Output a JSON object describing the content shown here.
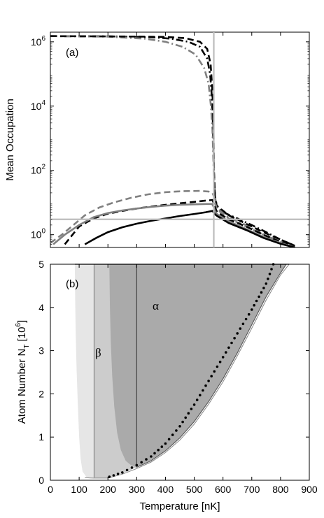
{
  "chart_data": [
    {
      "type": "line",
      "panel_label": "(a)",
      "ylabel": "Mean Occupation",
      "yscale": "log",
      "x_axis": {
        "range": [
          0,
          900
        ]
      },
      "y_axis": {
        "range": [
          0.4,
          2000000
        ]
      },
      "y_ticks": [
        {
          "value": 1,
          "base": "10",
          "exp": "0"
        },
        {
          "value": 100,
          "base": "10",
          "exp": "2"
        },
        {
          "value": 10000,
          "base": "10",
          "exp": "4"
        },
        {
          "value": 1000000,
          "base": "10",
          "exp": "6"
        }
      ],
      "reference_lines": [
        {
          "orientation": "vertical",
          "x": 568,
          "color": "#bcbcbc"
        },
        {
          "orientation": "horizontal",
          "y": 3,
          "color": "#bcbcbc"
        }
      ],
      "series": [
        {
          "style": "dashdot",
          "color": "#000000",
          "points": [
            [
              0,
              1500000
            ],
            [
              200,
              1480000
            ],
            [
              350,
              1400000
            ],
            [
              420,
              1250000
            ],
            [
              480,
              1000000
            ],
            [
              520,
              700000
            ],
            [
              545,
              300000
            ],
            [
              555,
              100000
            ],
            [
              560,
              30000
            ],
            [
              564,
              5000
            ],
            [
              567,
              500
            ],
            [
              569,
              60
            ],
            [
              572,
              15
            ],
            [
              578,
              8
            ],
            [
              600,
              5
            ],
            [
              650,
              3.2
            ],
            [
              700,
              2
            ],
            [
              750,
              1.2
            ],
            [
              800,
              0.7
            ],
            [
              850,
              0.45
            ]
          ]
        },
        {
          "style": "dashdot",
          "color": "#808080",
          "points": [
            [
              0,
              1500000
            ],
            [
              200,
              1450000
            ],
            [
              330,
              1250000
            ],
            [
              400,
              1000000
            ],
            [
              460,
              700000
            ],
            [
              505,
              400000
            ],
            [
              535,
              150000
            ],
            [
              550,
              50000
            ],
            [
              558,
              10000
            ],
            [
              563,
              2000
            ],
            [
              566,
              300
            ],
            [
              569,
              40
            ],
            [
              574,
              12
            ],
            [
              585,
              6
            ],
            [
              620,
              3.5
            ],
            [
              680,
              2
            ],
            [
              740,
              1
            ],
            [
              800,
              0.6
            ],
            [
              850,
              0.4
            ]
          ]
        },
        {
          "style": "dashed",
          "color": "#000000",
          "points": [
            [
              0,
              1500000
            ],
            [
              150,
              1480000
            ],
            [
              300,
              1460000
            ],
            [
              400,
              1420000
            ],
            [
              470,
              1300000
            ],
            [
              520,
              1000000
            ],
            [
              545,
              600000
            ],
            [
              557,
              200000
            ],
            [
              563,
              30000
            ],
            [
              567,
              2000
            ],
            [
              569,
              80
            ],
            [
              572,
              15
            ],
            [
              578,
              8
            ],
            [
              620,
              4
            ],
            [
              680,
              2.2
            ],
            [
              740,
              1.2
            ],
            [
              800,
              0.7
            ],
            [
              850,
              0.45
            ]
          ]
        },
        {
          "style": "dashed",
          "color": "#808080",
          "points": [
            [
              0,
              0.55
            ],
            [
              40,
              1
            ],
            [
              80,
              2
            ],
            [
              120,
              4
            ],
            [
              170,
              7
            ],
            [
              220,
              10
            ],
            [
              280,
              14
            ],
            [
              340,
              18
            ],
            [
              400,
              21
            ],
            [
              460,
              22.5
            ],
            [
              520,
              23
            ],
            [
              550,
              22
            ],
            [
              563,
              20
            ],
            [
              568,
              16
            ],
            [
              572,
              10
            ],
            [
              580,
              6
            ],
            [
              620,
              3.2
            ],
            [
              680,
              1.8
            ],
            [
              740,
              1
            ],
            [
              800,
              0.6
            ],
            [
              850,
              0.4
            ]
          ]
        },
        {
          "style": "dashed",
          "color": "#000000",
          "points": [
            [
              50,
              0.5
            ],
            [
              100,
              1.8
            ],
            [
              150,
              3.2
            ],
            [
              200,
              4.5
            ],
            [
              250,
              5.5
            ],
            [
              300,
              6.5
            ],
            [
              350,
              7.5
            ],
            [
              400,
              8.5
            ],
            [
              450,
              9.5
            ],
            [
              500,
              10.5
            ],
            [
              540,
              11.5
            ],
            [
              563,
              12
            ],
            [
              567,
              10
            ],
            [
              572,
              7
            ],
            [
              580,
              5
            ],
            [
              620,
              3
            ],
            [
              680,
              1.8
            ],
            [
              740,
              1
            ],
            [
              800,
              0.6
            ],
            [
              850,
              0.4
            ]
          ]
        },
        {
          "style": "solid",
          "color": "#808080",
          "points": [
            [
              10,
              0.5
            ],
            [
              50,
              1
            ],
            [
              100,
              2
            ],
            [
              150,
              3.5
            ],
            [
              200,
              4.7
            ],
            [
              250,
              5.7
            ],
            [
              300,
              6.5
            ],
            [
              350,
              7.3
            ],
            [
              400,
              8
            ],
            [
              450,
              8.5
            ],
            [
              500,
              8.8
            ],
            [
              540,
              9
            ],
            [
              562,
              9
            ],
            [
              567,
              7.5
            ],
            [
              572,
              5.5
            ],
            [
              580,
              4.3
            ],
            [
              620,
              2.6
            ],
            [
              680,
              1.5
            ],
            [
              740,
              0.85
            ],
            [
              800,
              0.55
            ],
            [
              850,
              0.4
            ]
          ]
        },
        {
          "style": "solid",
          "color": "#000000",
          "points": [
            [
              120,
              0.5
            ],
            [
              160,
              0.8
            ],
            [
              200,
              1.2
            ],
            [
              250,
              1.7
            ],
            [
              300,
              2.2
            ],
            [
              350,
              2.7
            ],
            [
              400,
              3.2
            ],
            [
              450,
              3.8
            ],
            [
              500,
              4.4
            ],
            [
              540,
              5
            ],
            [
              563,
              5.5
            ],
            [
              567,
              5
            ],
            [
              572,
              4.3
            ],
            [
              580,
              3.8
            ],
            [
              620,
              2.3
            ],
            [
              680,
              1.4
            ],
            [
              740,
              0.8
            ],
            [
              800,
              0.52
            ],
            [
              850,
              0.4
            ]
          ]
        }
      ]
    },
    {
      "type": "area",
      "panel_label": "(b)",
      "xlabel": "Temperature [nK]",
      "ylabel": "Atom Number N",
      "ylabel_sub": "T",
      "ylabel_unit": "[10",
      "ylabel_unit_exp": "6",
      "ylabel_unit_close": "]",
      "x_axis": {
        "range": [
          0,
          900
        ],
        "ticks": [
          "0",
          "100",
          "200",
          "300",
          "400",
          "500",
          "600",
          "700",
          "800",
          "900"
        ]
      },
      "y_axis": {
        "range": [
          0,
          5
        ],
        "ticks": [
          "0",
          "1",
          "2",
          "3",
          "4",
          "5"
        ]
      },
      "annotations": [
        {
          "text": "α",
          "x": 355,
          "y": 4.15
        },
        {
          "text": "β",
          "x": 160,
          "y": 2.65
        }
      ],
      "regions": [
        {
          "name": "outer",
          "color": "#e6e6e6",
          "boundary": [
            [
              85,
              5
            ],
            [
              86,
              4.2
            ],
            [
              88,
              3.4
            ],
            [
              91,
              2.6
            ],
            [
              95,
              1.8
            ],
            [
              100,
              1
            ],
            [
              105,
              0.5
            ],
            [
              112,
              0.2
            ],
            [
              125,
              0.08
            ],
            [
              150,
              0.06
            ],
            [
              180,
              0.05
            ],
            [
              200,
              0.06
            ],
            [
              250,
              0.16
            ],
            [
              300,
              0.3
            ],
            [
              350,
              0.45
            ],
            [
              400,
              0.68
            ],
            [
              450,
              0.98
            ],
            [
              500,
              1.36
            ],
            [
              550,
              1.82
            ],
            [
              600,
              2.35
            ],
            [
              650,
              2.95
            ],
            [
              700,
              3.6
            ],
            [
              750,
              4.25
            ],
            [
              800,
              4.8
            ],
            [
              820,
              5
            ]
          ]
        },
        {
          "name": "beta",
          "color": "#cccccc",
          "boundary": [
            [
              152,
              5
            ],
            [
              152,
              0.06
            ],
            [
              180,
              0.05
            ],
            [
              200,
              0.06
            ],
            [
              250,
              0.16
            ],
            [
              300,
              0.3
            ],
            [
              350,
              0.45
            ],
            [
              400,
              0.68
            ],
            [
              450,
              0.98
            ],
            [
              500,
              1.36
            ],
            [
              550,
              1.82
            ],
            [
              600,
              2.35
            ],
            [
              650,
              2.95
            ],
            [
              700,
              3.6
            ],
            [
              750,
              4.25
            ],
            [
              800,
              4.8
            ],
            [
              820,
              5
            ]
          ],
          "inner_curve": [
            [
              205,
              5
            ],
            [
              207,
              4
            ],
            [
              210,
              3.2
            ],
            [
              215,
              2.4
            ],
            [
              222,
              1.7
            ],
            [
              232,
              1.1
            ],
            [
              245,
              0.7
            ],
            [
              262,
              0.45
            ],
            [
              280,
              0.35
            ],
            [
              300,
              0.3
            ]
          ]
        },
        {
          "name": "alpha",
          "color": "#aaaaaa",
          "boundary": [
            [
              300,
              5
            ],
            [
              300,
              0.3
            ],
            [
              350,
              0.45
            ],
            [
              400,
              0.68
            ],
            [
              450,
              0.98
            ],
            [
              500,
              1.36
            ],
            [
              550,
              1.82
            ],
            [
              600,
              2.35
            ],
            [
              650,
              2.95
            ],
            [
              700,
              3.6
            ],
            [
              750,
              4.25
            ],
            [
              800,
              4.8
            ],
            [
              820,
              5
            ]
          ]
        }
      ],
      "lower_curve": [
        [
          120,
          0.06
        ],
        [
          150,
          0.05
        ],
        [
          200,
          0.05
        ],
        [
          250,
          0.14
        ],
        [
          300,
          0.27
        ],
        [
          350,
          0.42
        ],
        [
          400,
          0.64
        ],
        [
          450,
          0.93
        ],
        [
          500,
          1.3
        ],
        [
          550,
          1.76
        ],
        [
          600,
          2.28
        ],
        [
          650,
          2.88
        ],
        [
          700,
          3.52
        ],
        [
          750,
          4.17
        ],
        [
          800,
          4.75
        ],
        [
          830,
          5
        ],
        [
          860,
          5
        ]
      ],
      "dotted_series": [
        [
          205,
          0.08
        ],
        [
          250,
          0.18
        ],
        [
          300,
          0.35
        ],
        [
          350,
          0.55
        ],
        [
          400,
          0.85
        ],
        [
          450,
          1.25
        ],
        [
          500,
          1.75
        ],
        [
          550,
          2.3
        ],
        [
          600,
          2.85
        ],
        [
          650,
          3.4
        ],
        [
          700,
          3.95
        ],
        [
          750,
          4.55
        ],
        [
          775,
          5
        ]
      ]
    }
  ]
}
